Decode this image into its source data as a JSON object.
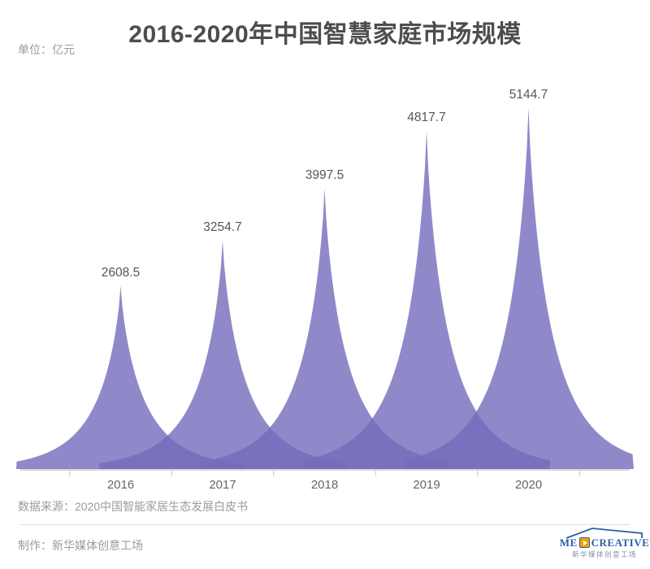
{
  "header": {
    "title": "2016-2020年中国智慧家庭市场规模",
    "unit": "单位：亿元"
  },
  "chart_data": {
    "type": "area",
    "title": "2016-2020年中国智慧家庭市场规模",
    "unit": "亿元",
    "categories": [
      "2016",
      "2017",
      "2018",
      "2019",
      "2020"
    ],
    "values": [
      2608.5,
      3254.7,
      3997.5,
      4817.7,
      5144.7
    ],
    "value_labels": [
      "2608.5",
      "3254.7",
      "3997.5",
      "4817.7",
      "5144.7"
    ],
    "series_name": "市场规模",
    "fill_color": "#746bbb",
    "fill_opacity": 0.8,
    "axis_color": "#d6d6d6",
    "tick_color": "#c9c9c9",
    "value_label_color": "#565656",
    "year_label_color": "#666666",
    "ylim": [
      0,
      5700
    ],
    "grid": false,
    "legend": "none"
  },
  "footer": {
    "source": "数据来源：2020中国智能家居生态发展白皮书",
    "credit": "制作：新华媒体创意工场",
    "logo": {
      "text_pre": "ME",
      "text_post": "CREATIVE",
      "subtext": "新华媒体创意工场"
    }
  }
}
